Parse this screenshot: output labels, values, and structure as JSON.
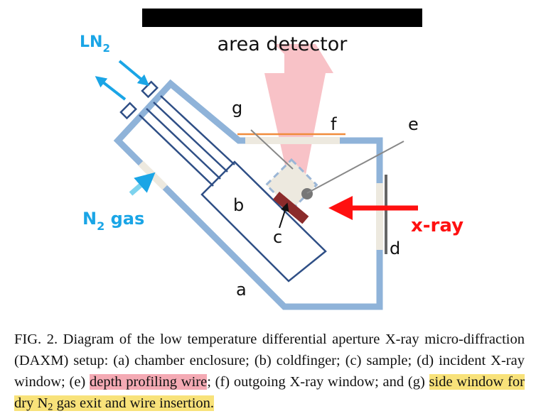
{
  "diagram": {
    "top_label": "area detector",
    "ln2_label": "LN",
    "ln2_sub": "2",
    "n2_label_main": "N",
    "n2_label_sub": "2",
    "n2_label_tail": " gas",
    "xray_label": "x-ray",
    "letters": {
      "a": "a",
      "b": "b",
      "c": "c",
      "d": "d",
      "e": "e",
      "f": "f",
      "g": "g"
    },
    "colors": {
      "enclosure": "#8fb3d9",
      "window": "#ede9df",
      "coldfinger": "#2f4f86",
      "sample": "#8b2b2b",
      "beam": "#f7b7bd",
      "xray_arrow": "#ff1010",
      "accent_blue": "#1aa5e6",
      "outgoing_window": "#f08c3c"
    }
  },
  "caption": {
    "prefix": "FIG. 2. Diagram of the low temperature differential aperture X-ray micro-diffraction (DAXM) setup: (a) chamber enclosure; (b) coldfinger; (c) sample; (d) incident X-ray window; (e) ",
    "highlight_e": "depth profiling wire",
    "middle": "; (f) outgoing X-ray window; and (g) ",
    "highlight_g_pre": "side window for dry N",
    "highlight_g_sub": "2",
    "highlight_g_post": " gas exit and wire insertion."
  }
}
